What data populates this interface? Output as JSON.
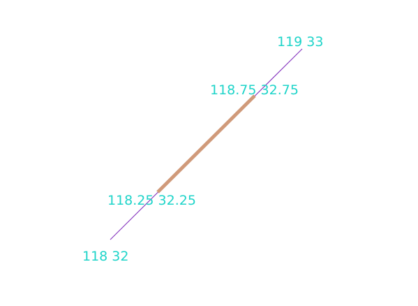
{
  "diagram": {
    "full_line": {
      "start": {
        "label": "118 32"
      },
      "end": {
        "label": "119 33"
      },
      "color": "#8a3cc0"
    },
    "highlight_segment": {
      "start": {
        "label": "118.25 32.25"
      },
      "end": {
        "label": "118.75 32.75"
      },
      "color": "#d09a7a"
    },
    "label_color": "#1ed4c9"
  }
}
